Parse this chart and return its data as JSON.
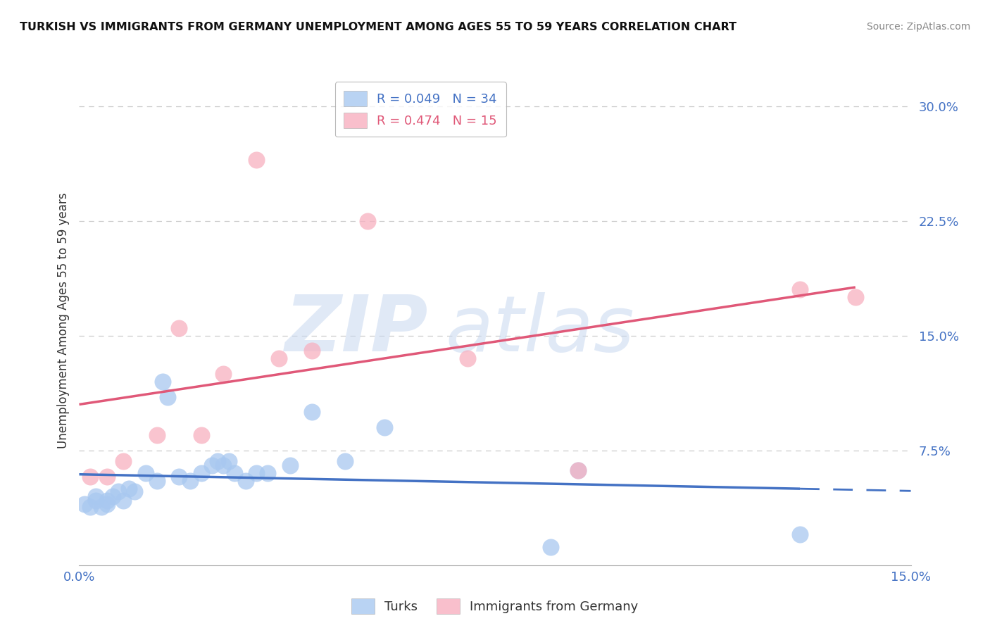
{
  "title": "TURKISH VS IMMIGRANTS FROM GERMANY UNEMPLOYMENT AMONG AGES 55 TO 59 YEARS CORRELATION CHART",
  "source": "Source: ZipAtlas.com",
  "ylabel": "Unemployment Among Ages 55 to 59 years",
  "xlim": [
    0.0,
    0.15
  ],
  "ylim": [
    0.0,
    0.32
  ],
  "xticks": [
    0.0,
    0.025,
    0.05,
    0.075,
    0.1,
    0.125,
    0.15
  ],
  "xtick_labels": [
    "0.0%",
    "",
    "",
    "",
    "",
    "",
    "15.0%"
  ],
  "yticks": [
    0.075,
    0.15,
    0.225,
    0.3
  ],
  "ytick_labels": [
    "7.5%",
    "15.0%",
    "22.5%",
    "30.0%"
  ],
  "turks_x": [
    0.001,
    0.002,
    0.003,
    0.003,
    0.004,
    0.005,
    0.005,
    0.006,
    0.007,
    0.008,
    0.009,
    0.01,
    0.012,
    0.014,
    0.015,
    0.016,
    0.018,
    0.02,
    0.022,
    0.024,
    0.025,
    0.026,
    0.027,
    0.028,
    0.03,
    0.032,
    0.034,
    0.038,
    0.042,
    0.048,
    0.055,
    0.085,
    0.09,
    0.13
  ],
  "turks_y": [
    0.04,
    0.038,
    0.042,
    0.045,
    0.038,
    0.042,
    0.04,
    0.045,
    0.048,
    0.042,
    0.05,
    0.048,
    0.06,
    0.055,
    0.12,
    0.11,
    0.058,
    0.055,
    0.06,
    0.065,
    0.068,
    0.065,
    0.068,
    0.06,
    0.055,
    0.06,
    0.06,
    0.065,
    0.1,
    0.068,
    0.09,
    0.012,
    0.062,
    0.02
  ],
  "germany_x": [
    0.002,
    0.005,
    0.008,
    0.014,
    0.018,
    0.022,
    0.026,
    0.032,
    0.036,
    0.042,
    0.052,
    0.07,
    0.09,
    0.13,
    0.14
  ],
  "germany_y": [
    0.058,
    0.058,
    0.068,
    0.085,
    0.155,
    0.085,
    0.125,
    0.265,
    0.135,
    0.14,
    0.225,
    0.135,
    0.062,
    0.18,
    0.175
  ],
  "turks_color": "#a8c8f0",
  "germany_color": "#f8b0c0",
  "turks_line_color": "#4472c4",
  "germany_line_color": "#e05878",
  "R_turks": 0.049,
  "N_turks": 34,
  "R_germany": 0.474,
  "N_germany": 15,
  "watermark_zip": "ZIP",
  "watermark_atlas": "atlas",
  "background_color": "#ffffff",
  "grid_color": "#cccccc"
}
